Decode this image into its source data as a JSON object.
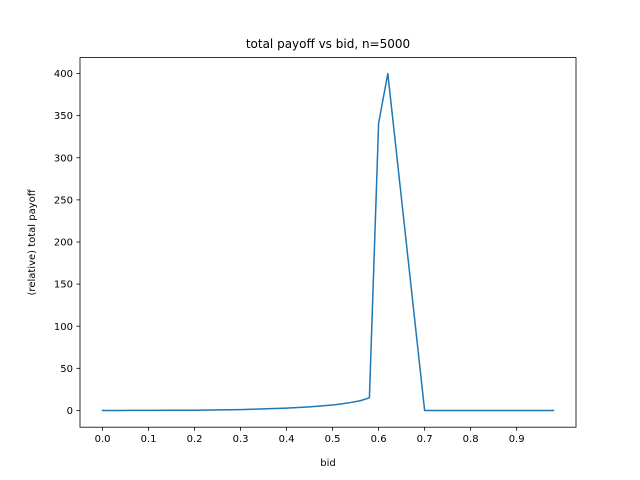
{
  "chart_data": {
    "type": "line",
    "title": "total payoff vs bid, n=5000",
    "xlabel": "bid",
    "ylabel": "(relative) total payoff",
    "xlim": [
      -0.049,
      1.029
    ],
    "ylim": [
      -19.9,
      418.9
    ],
    "xticks": [
      "0.0",
      "0.1",
      "0.2",
      "0.3",
      "0.4",
      "0.5",
      "0.6",
      "0.7",
      "0.8",
      "0.9"
    ],
    "yticks": [
      "0",
      "50",
      "100",
      "150",
      "200",
      "250",
      "300",
      "350",
      "400"
    ],
    "grid": false,
    "series": [
      {
        "color": "#1f77b4",
        "x": [
          0.0,
          0.05,
          0.1,
          0.15,
          0.2,
          0.25,
          0.3,
          0.35,
          0.4,
          0.45,
          0.5,
          0.52,
          0.54,
          0.56,
          0.58,
          0.6,
          0.62,
          0.7,
          0.72,
          0.8,
          0.9,
          0.98
        ],
        "y": [
          0,
          0,
          0.1,
          0.2,
          0.3,
          0.6,
          1.0,
          1.8,
          2.8,
          4.2,
          6.5,
          7.8,
          9.5,
          11.5,
          15,
          341,
          400,
          0,
          0,
          0,
          0,
          0
        ]
      }
    ]
  }
}
